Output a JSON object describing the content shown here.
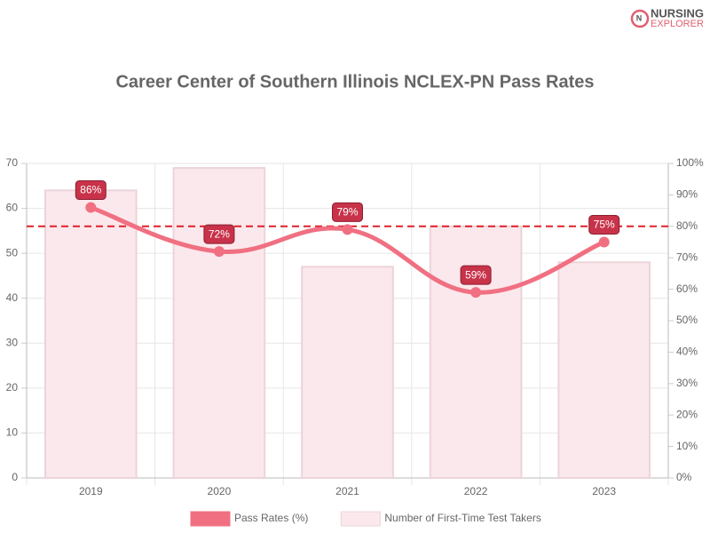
{
  "logo": {
    "line1": "NURSING",
    "line2": "EXPLORER"
  },
  "chart_data": {
    "type": "combo",
    "title": "Career Center of Southern Illinois NCLEX-PN Pass Rates",
    "categories": [
      "2019",
      "2020",
      "2021",
      "2022",
      "2023"
    ],
    "series": [
      {
        "name": "Pass Rates (%)",
        "type": "line",
        "axis": "y2",
        "color": "#f07082",
        "values": [
          86,
          72,
          79,
          59,
          75
        ],
        "value_labels": [
          "86%",
          "72%",
          "79%",
          "59%",
          "75%"
        ]
      },
      {
        "name": "Number of First-Time Test Takers",
        "type": "bar",
        "axis": "y",
        "color": "#fbe8ec",
        "values": [
          64,
          69,
          47,
          56,
          48
        ]
      }
    ],
    "ylim": [
      0,
      70
    ],
    "yticks": [
      0,
      10,
      20,
      30,
      40,
      50,
      60,
      70
    ],
    "y2lim": [
      0,
      100
    ],
    "y2ticks": [
      {
        "value": 0,
        "label": "0%"
      },
      {
        "value": 10,
        "label": "10%"
      },
      {
        "value": 20,
        "label": "20%"
      },
      {
        "value": 30,
        "label": "30%"
      },
      {
        "value": 40,
        "label": "40%"
      },
      {
        "value": 50,
        "label": "50%"
      },
      {
        "value": 60,
        "label": "60%"
      },
      {
        "value": 70,
        "label": "70%"
      },
      {
        "value": 80,
        "label": "80%"
      },
      {
        "value": 90,
        "label": "90%"
      },
      {
        "value": 100,
        "label": "100%"
      }
    ],
    "reference_line": {
      "value": 80,
      "axis": "y2",
      "color": "#e0202a"
    },
    "grid": true,
    "legend": "bottom"
  }
}
